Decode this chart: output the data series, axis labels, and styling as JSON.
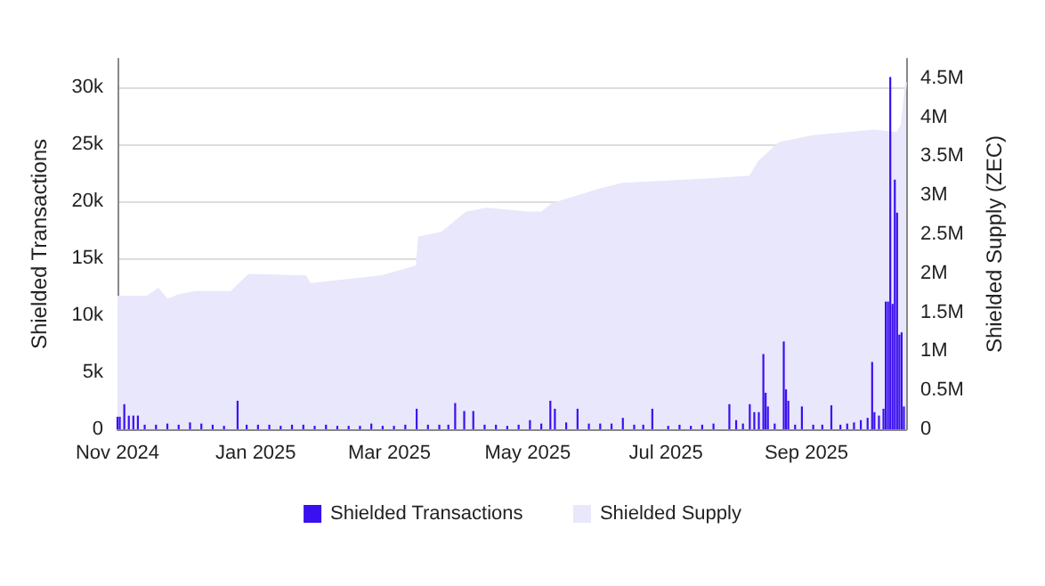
{
  "chart_data": {
    "type": "bar",
    "ylabel": "Shielded Transactions",
    "y2label": "Shielded Supply (ZEC)",
    "grid": "y",
    "legend": "bottom",
    "xlim": [
      "2024-11-01",
      "2025-10-15"
    ],
    "xticks": [
      {
        "value": "2024-11-01",
        "label": "Nov 2024"
      },
      {
        "value": "2025-01-01",
        "label": "Jan 2025"
      },
      {
        "value": "2025-03-01",
        "label": "Mar 2025"
      },
      {
        "value": "2025-05-01",
        "label": "May 2025"
      },
      {
        "value": "2025-07-01",
        "label": "Jul 2025"
      },
      {
        "value": "2025-09-01",
        "label": "Sep 2025"
      }
    ],
    "ylim": [
      0,
      32500
    ],
    "yticks": [
      0,
      {
        "value": 5000,
        "label": "5k"
      },
      {
        "value": 10000,
        "label": "10k"
      },
      {
        "value": 15000,
        "label": "15k"
      },
      {
        "value": 20000,
        "label": "20k"
      },
      {
        "value": 25000,
        "label": "25k"
      },
      {
        "value": 30000,
        "label": "30k"
      }
    ],
    "y2lim": [
      0,
      4750000
    ],
    "y2ticks": [
      0,
      {
        "value": 500000,
        "label": "0.5M"
      },
      {
        "value": 1000000,
        "label": "1M"
      },
      {
        "value": 1500000,
        "label": "1.5M"
      },
      {
        "value": 2000000,
        "label": "2M"
      },
      {
        "value": 2500000,
        "label": "2.5M"
      },
      {
        "value": 3000000,
        "label": "3M"
      },
      {
        "value": 3500000,
        "label": "3.5M"
      },
      {
        "value": 4000000,
        "label": "4M"
      },
      {
        "value": 4500000,
        "label": "4.5M"
      }
    ],
    "series": [
      {
        "name": "Shielded Supply",
        "type": "area",
        "axis": "y2",
        "color": "#e9e7fb",
        "x": [
          "2024-11-01",
          "2024-11-14",
          "2024-11-19",
          "2024-11-23",
          "2024-11-28",
          "2024-12-05",
          "2024-12-21",
          "2024-12-29",
          "2025-01-23",
          "2025-01-25",
          "2025-02-25",
          "2025-03-13",
          "2025-03-14",
          "2025-03-24",
          "2025-04-04",
          "2025-04-13",
          "2025-05-01",
          "2025-05-07",
          "2025-05-12",
          "2025-06-01",
          "2025-06-12",
          "2025-07-17",
          "2025-08-07",
          "2025-08-11",
          "2025-08-20",
          "2025-09-04",
          "2025-10-01",
          "2025-10-11",
          "2025-10-13",
          "2025-10-15"
        ],
        "values": [
          1700000,
          1700000,
          1800000,
          1660000,
          1720000,
          1760000,
          1760000,
          1980000,
          1960000,
          1860000,
          1960000,
          2090000,
          2460000,
          2520000,
          2780000,
          2830000,
          2780000,
          2780000,
          2890000,
          3070000,
          3150000,
          3200000,
          3240000,
          3430000,
          3670000,
          3760000,
          3830000,
          3800000,
          3900000,
          4450000
        ]
      },
      {
        "name": "Shielded Transactions",
        "color": "#3b10f0",
        "x": [
          "2024-11-01",
          "2024-11-02",
          "2024-11-04",
          "2024-11-06",
          "2024-11-08",
          "2024-11-10",
          "2024-11-13",
          "2024-11-18",
          "2024-11-23",
          "2024-11-28",
          "2024-12-03",
          "2024-12-08",
          "2024-12-13",
          "2024-12-18",
          "2024-12-24",
          "2024-12-28",
          "2025-01-02",
          "2025-01-07",
          "2025-01-12",
          "2025-01-17",
          "2025-01-22",
          "2025-01-27",
          "2025-02-01",
          "2025-02-06",
          "2025-02-11",
          "2025-02-16",
          "2025-02-21",
          "2025-02-26",
          "2025-03-03",
          "2025-03-08",
          "2025-03-13",
          "2025-03-18",
          "2025-03-23",
          "2025-03-27",
          "2025-03-30",
          "2025-04-03",
          "2025-04-07",
          "2025-04-12",
          "2025-04-17",
          "2025-04-22",
          "2025-04-27",
          "2025-05-02",
          "2025-05-07",
          "2025-05-11",
          "2025-05-13",
          "2025-05-18",
          "2025-05-23",
          "2025-05-28",
          "2025-06-02",
          "2025-06-07",
          "2025-06-12",
          "2025-06-17",
          "2025-06-21",
          "2025-06-25",
          "2025-07-02",
          "2025-07-07",
          "2025-07-12",
          "2025-07-17",
          "2025-07-22",
          "2025-07-29",
          "2025-08-01",
          "2025-08-04",
          "2025-08-07",
          "2025-08-09",
          "2025-08-11",
          "2025-08-13",
          "2025-08-14",
          "2025-08-15",
          "2025-08-18",
          "2025-08-22",
          "2025-08-23",
          "2025-08-24",
          "2025-08-27",
          "2025-08-30",
          "2025-09-04",
          "2025-09-08",
          "2025-09-12",
          "2025-09-16",
          "2025-09-19",
          "2025-09-22",
          "2025-09-25",
          "2025-09-28",
          "2025-09-30",
          "2025-10-01",
          "2025-10-03",
          "2025-10-05",
          "2025-10-06",
          "2025-10-07",
          "2025-10-08",
          "2025-10-09",
          "2025-10-10",
          "2025-10-11",
          "2025-10-12",
          "2025-10-13",
          "2025-10-14"
        ],
        "values": [
          1100,
          1100,
          2200,
          1200,
          1200,
          1200,
          400,
          400,
          500,
          400,
          600,
          500,
          400,
          300,
          2500,
          400,
          400,
          400,
          300,
          400,
          400,
          300,
          400,
          300,
          300,
          300,
          500,
          300,
          300,
          400,
          1800,
          400,
          400,
          400,
          2300,
          1600,
          1600,
          400,
          400,
          300,
          400,
          800,
          500,
          2500,
          1800,
          600,
          1800,
          500,
          500,
          500,
          1000,
          400,
          400,
          1800,
          300,
          400,
          300,
          400,
          500,
          2200,
          800,
          500,
          2200,
          1500,
          1500,
          6600,
          3200,
          2000,
          500,
          7700,
          3500,
          2500,
          400,
          2000,
          400,
          400,
          2100,
          400,
          500,
          600,
          800,
          1000,
          5900,
          1500,
          1200,
          1800,
          11200,
          11200,
          30900,
          11000,
          21900,
          19000,
          8300,
          8500,
          2000
        ]
      }
    ]
  }
}
